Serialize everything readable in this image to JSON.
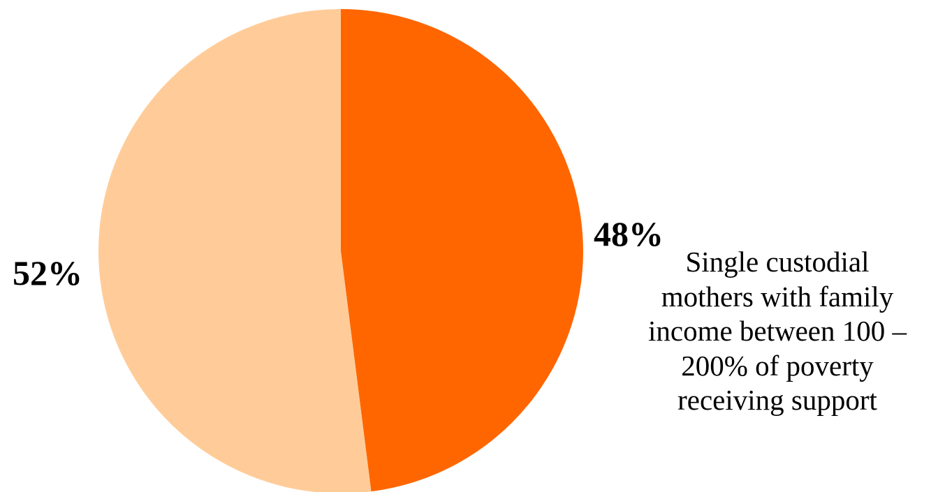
{
  "chart_data": {
    "type": "pie",
    "slices": [
      {
        "value": 48,
        "label": "48%",
        "color": "#FF6600",
        "annotation_lines": [
          "Single custodial",
          "mothers with family",
          "income between 100 –",
          "200% of poverty",
          "receiving support"
        ]
      },
      {
        "value": 52,
        "label": "52%",
        "color": "#FFCC99"
      }
    ],
    "start": "top",
    "direction": "clockwise",
    "legend": "none"
  }
}
